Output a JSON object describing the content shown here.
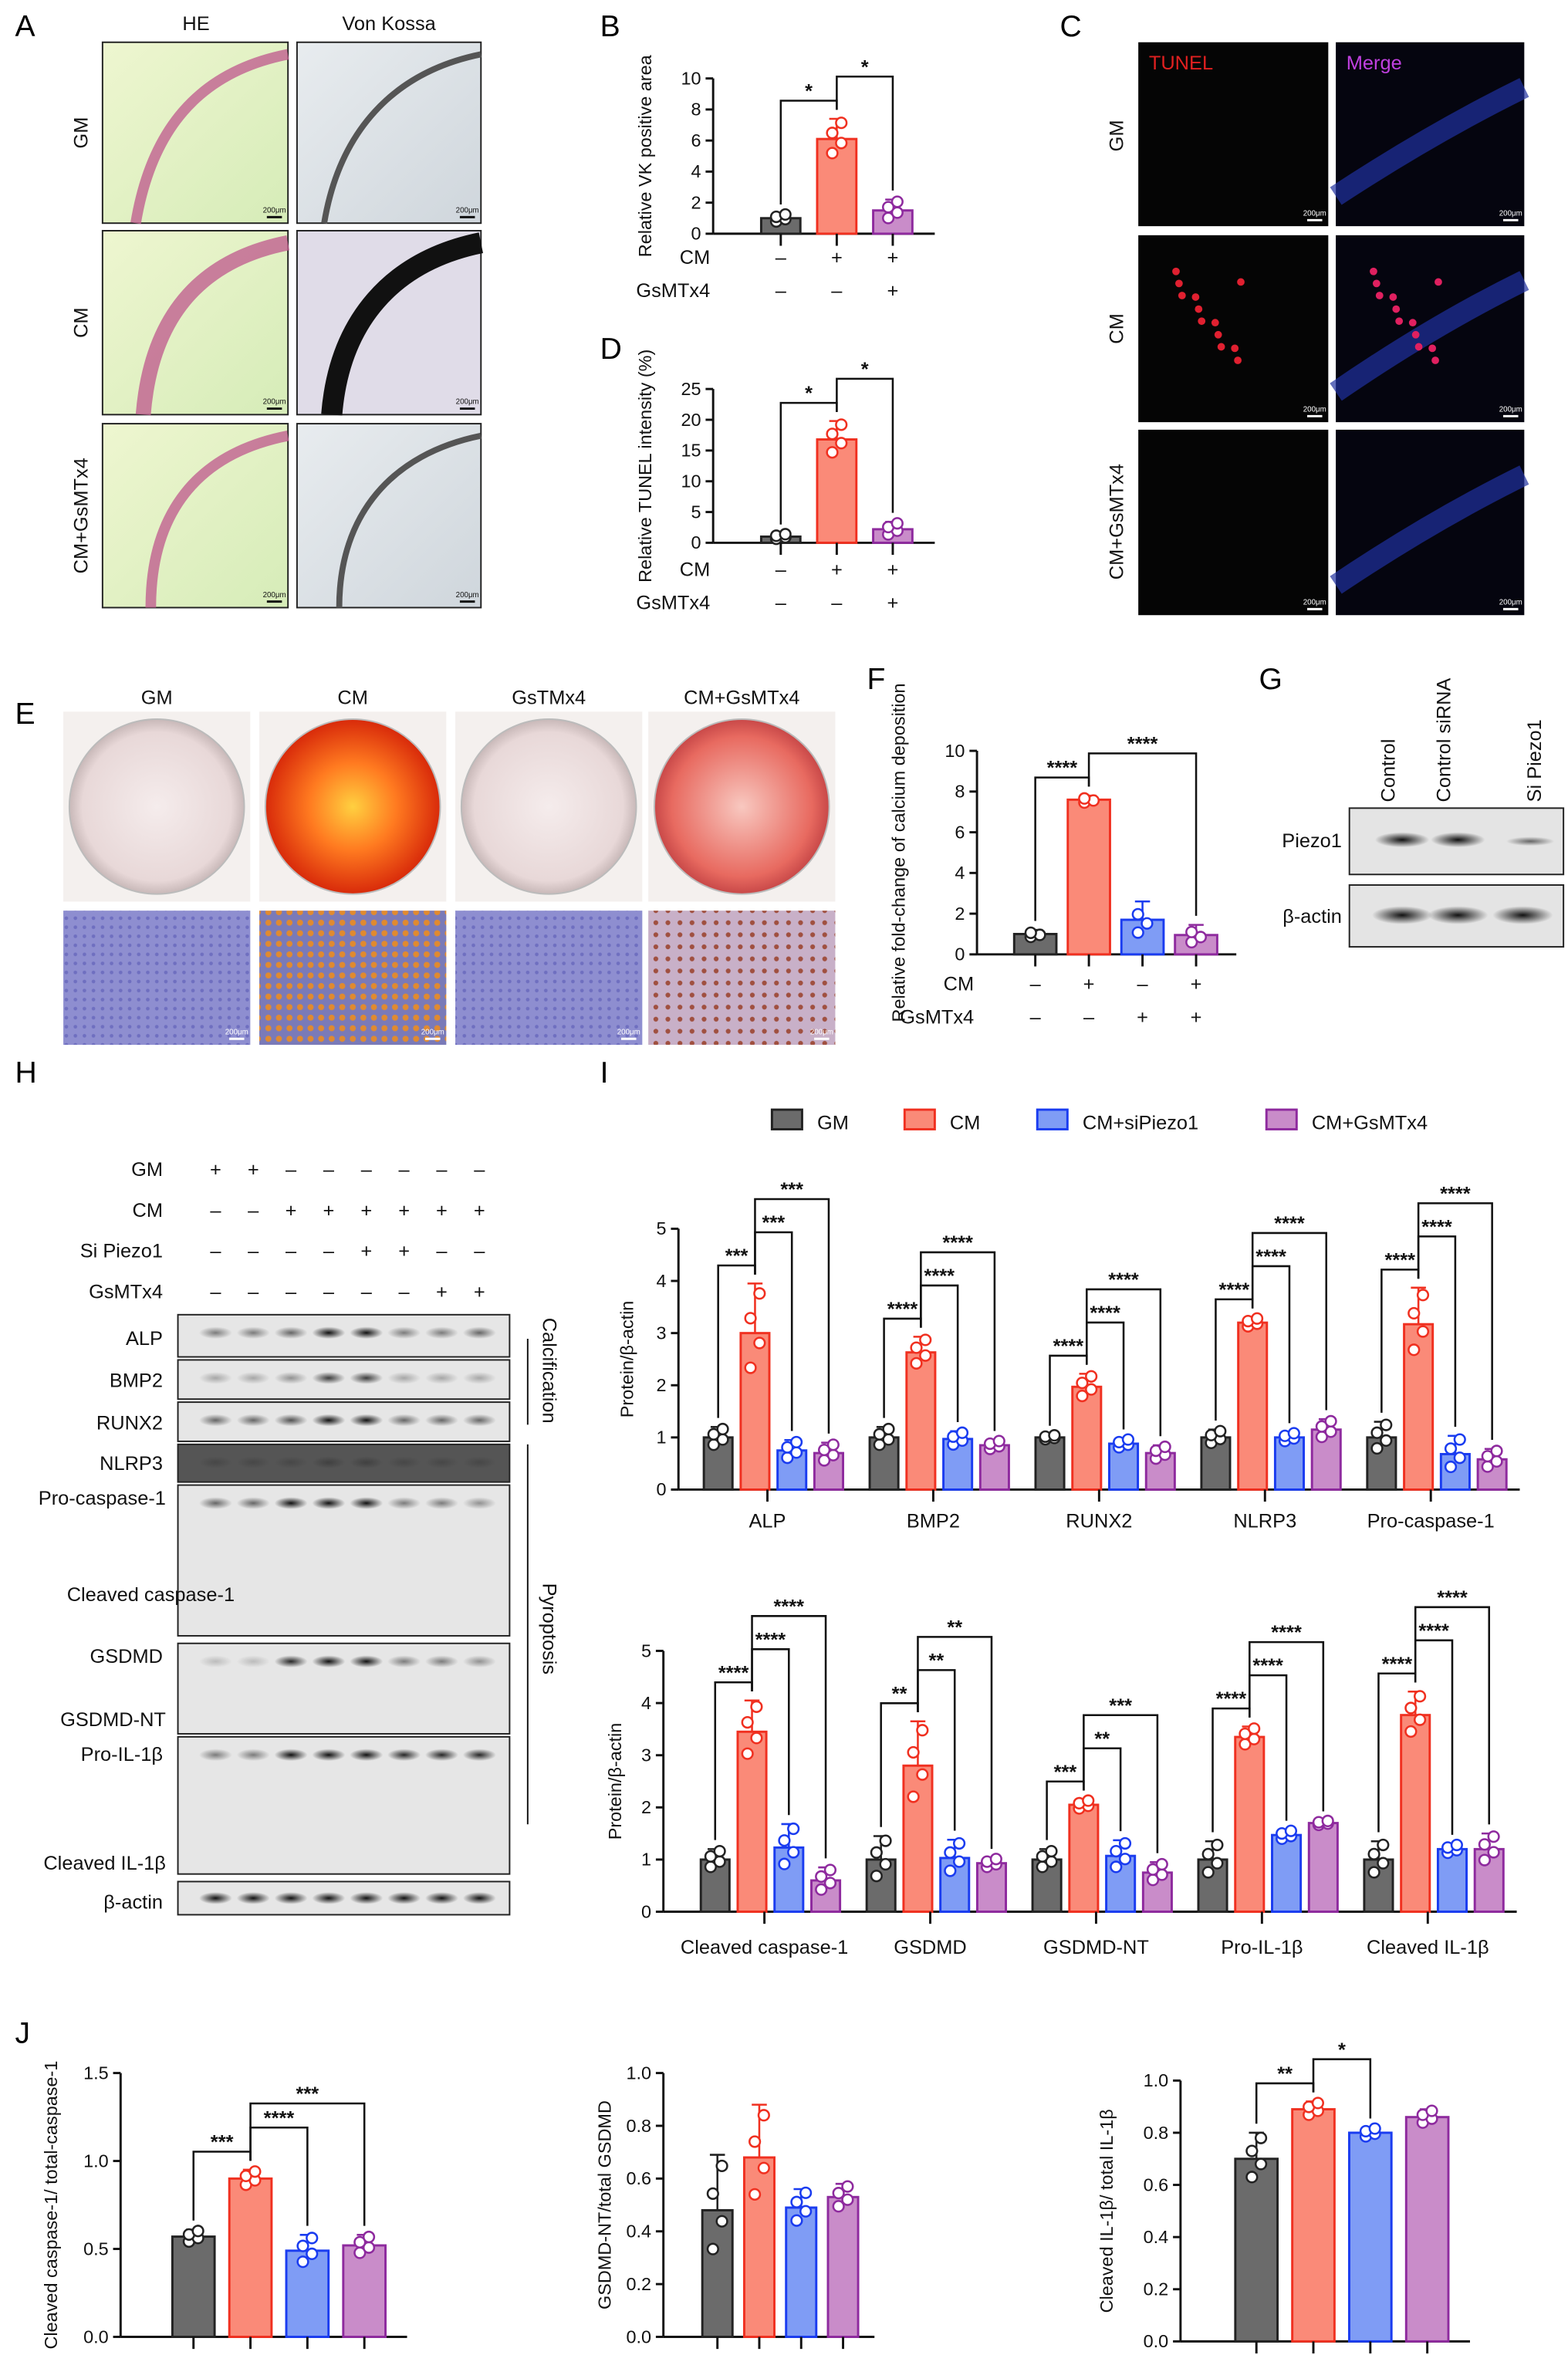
{
  "colors": {
    "GM": "#6b6b6b",
    "CM": "#fa8a78",
    "CM+siPiezo1": "#7f9cf5",
    "CM+GsMTx4": "#c98cc9",
    "GM_stroke": "#222222",
    "CM_stroke": "#f03020",
    "si_stroke": "#1a3cf0",
    "gs_stroke": "#8e2a9e"
  },
  "panels": {
    "A": {
      "label": "A",
      "cols": [
        "HE",
        "Von Kossa"
      ],
      "rows": [
        "GM",
        "CM",
        "CM+GsMTx4"
      ],
      "scale": "200μm"
    },
    "B": {
      "label": "B"
    },
    "C": {
      "label": "C",
      "cols": [
        "TUNEL",
        "Merge"
      ],
      "rows": [
        "GM",
        "CM",
        "CM+GsMTx4"
      ],
      "scale": "200μm"
    },
    "D": {
      "label": "D"
    },
    "E": {
      "label": "E",
      "cols": [
        "GM",
        "CM",
        "GsTMx4",
        "CM+GsMTx4"
      ],
      "scale": "200μm"
    },
    "F": {
      "label": "F"
    },
    "G": {
      "label": "G",
      "lanes": [
        "Control",
        "Control siRNA",
        "Si Piezo1"
      ],
      "rows": [
        "Piezo1",
        "β-actin"
      ]
    },
    "H": {
      "label": "H",
      "treatments": [
        {
          "name": "GM",
          "values": [
            "+",
            "+",
            "–",
            "–",
            "–",
            "–",
            "–",
            "–"
          ]
        },
        {
          "name": "CM",
          "values": [
            "–",
            "–",
            "+",
            "+",
            "+",
            "+",
            "+",
            "+"
          ]
        },
        {
          "name": "Si Piezo1",
          "values": [
            "–",
            "–",
            "–",
            "–",
            "+",
            "+",
            "–",
            "–"
          ]
        },
        {
          "name": "GsMTx4",
          "values": [
            "–",
            "–",
            "–",
            "–",
            "–",
            "–",
            "+",
            "+"
          ]
        }
      ],
      "blots": [
        "ALP",
        "BMP2",
        "RUNX2",
        "NLRP3",
        "Pro-caspase-1",
        "Cleaved caspase-1",
        "GSDMD",
        "GSDMD-NT",
        "Pro-IL-1β",
        "Cleaved IL-1β",
        "β-actin"
      ],
      "groups": [
        "Calcification",
        "Pyroptosis"
      ]
    },
    "I": {
      "label": "I",
      "legend": [
        "GM",
        "CM",
        "CM+siPiezo1",
        "CM+GsMTx4"
      ]
    },
    "J": {
      "label": "J"
    }
  },
  "chart_data": [
    {
      "id": "B",
      "type": "bar",
      "ylabel": "Relative VK positive area",
      "ylim": [
        0,
        10
      ],
      "ticks": [
        "0",
        "2",
        "4",
        "6",
        "8",
        "10"
      ],
      "series_names": [
        "GM",
        "CM",
        "CM+GsMTx4"
      ],
      "groups": [
        {
          "name": "",
          "values": [
            1.0,
            6.1,
            1.5
          ],
          "sd": [
            0.3,
            1.3,
            0.7
          ]
        }
      ],
      "sig": [
        {
          "g": 0,
          "a": 0,
          "b": 1,
          "label": "*"
        },
        {
          "g": 0,
          "a": 1,
          "b": 2,
          "label": "*"
        }
      ],
      "conditions": [
        {
          "name": "CM",
          "values": [
            "–",
            "+",
            "+"
          ]
        },
        {
          "name": "GsMTx4",
          "values": [
            "–",
            "–",
            "+"
          ]
        }
      ]
    },
    {
      "id": "D",
      "type": "bar",
      "ylabel": "Relative TUNEL intensity (%)",
      "ylim": [
        0,
        25
      ],
      "ticks": [
        "0",
        "5",
        "10",
        "15",
        "20",
        "25"
      ],
      "series_names": [
        "GM",
        "CM",
        "CM+GsMTx4"
      ],
      "groups": [
        {
          "name": "",
          "values": [
            1.0,
            16.8,
            2.2
          ],
          "sd": [
            0.5,
            3.0,
            1.2
          ]
        }
      ],
      "sig": [
        {
          "g": 0,
          "a": 0,
          "b": 1,
          "label": "*"
        },
        {
          "g": 0,
          "a": 1,
          "b": 2,
          "label": "*"
        }
      ],
      "conditions": [
        {
          "name": "CM",
          "values": [
            "–",
            "+",
            "+"
          ]
        },
        {
          "name": "GsMTx4",
          "values": [
            "–",
            "–",
            "+"
          ]
        }
      ]
    },
    {
      "id": "F",
      "type": "bar",
      "ylabel": "Relative fold-change of calcium deposition",
      "ylim": [
        0,
        10
      ],
      "ticks": [
        "0",
        "2",
        "4",
        "6",
        "8",
        "10"
      ],
      "series_names": [
        "GM",
        "CM",
        "GsMTx4",
        "CM+GsMTx4"
      ],
      "groups": [
        {
          "name": "",
          "values": [
            1.0,
            7.6,
            1.7,
            0.95
          ],
          "sd": [
            0.2,
            0.2,
            0.9,
            0.5
          ]
        }
      ],
      "sig": [
        {
          "g": 0,
          "a": 0,
          "b": 1,
          "label": "****"
        },
        {
          "g": 0,
          "a": 1,
          "b": 3,
          "label": "****"
        }
      ],
      "conditions": [
        {
          "name": "CM",
          "values": [
            "–",
            "+",
            "–",
            "+"
          ]
        },
        {
          "name": "GsMTx4",
          "values": [
            "–",
            "–",
            "+",
            "+"
          ]
        }
      ]
    },
    {
      "id": "I-top",
      "type": "bar",
      "ylabel": "Protein/β-actin",
      "ylim": [
        0,
        5
      ],
      "ticks": [
        "0",
        "1",
        "2",
        "3",
        "4",
        "5"
      ],
      "series_names": [
        "GM",
        "CM",
        "CM+siPiezo1",
        "CM+GsMTx4"
      ],
      "groups": [
        {
          "name": "ALP",
          "values": [
            1.0,
            3.0,
            0.75,
            0.7
          ],
          "sd": [
            0.2,
            0.95,
            0.2,
            0.2
          ],
          "sig": [
            "***",
            "***",
            "***"
          ]
        },
        {
          "name": "BMP2",
          "values": [
            1.0,
            2.63,
            0.97,
            0.85
          ],
          "sd": [
            0.2,
            0.3,
            0.15,
            0.1
          ],
          "sig": [
            "****",
            "****",
            "****"
          ]
        },
        {
          "name": "RUNX2",
          "values": [
            1.0,
            1.97,
            0.88,
            0.7
          ],
          "sd": [
            0.05,
            0.25,
            0.1,
            0.15
          ],
          "sig": [
            "****",
            "****",
            "****"
          ]
        },
        {
          "name": "NLRP3",
          "values": [
            1.0,
            3.2,
            1.0,
            1.15
          ],
          "sd": [
            0.15,
            0.1,
            0.1,
            0.2
          ],
          "sig": [
            "****",
            "****",
            "****"
          ]
        },
        {
          "name": "Pro-caspase-1",
          "values": [
            1.0,
            3.17,
            0.68,
            0.58
          ],
          "sd": [
            0.3,
            0.7,
            0.35,
            0.2
          ],
          "sig": [
            "****",
            "****",
            "****"
          ]
        }
      ]
    },
    {
      "id": "I-bottom",
      "type": "bar",
      "ylabel": "Protein/β-actin",
      "ylim": [
        0,
        5
      ],
      "ticks": [
        "0",
        "1",
        "2",
        "3",
        "4",
        "5"
      ],
      "series_names": [
        "GM",
        "CM",
        "CM+siPiezo1",
        "CM+GsMTx4"
      ],
      "groups": [
        {
          "name": "Cleaved caspase-1",
          "values": [
            1.0,
            3.45,
            1.23,
            0.6
          ],
          "sd": [
            0.2,
            0.6,
            0.45,
            0.25
          ],
          "sig": [
            "****",
            "****",
            "****"
          ]
        },
        {
          "name": "GSDMD",
          "values": [
            1.0,
            2.8,
            1.03,
            0.93
          ],
          "sd": [
            0.45,
            0.85,
            0.35,
            0.1
          ],
          "sig": [
            "**",
            "**",
            "**"
          ]
        },
        {
          "name": "GSDMD-NT",
          "values": [
            1.0,
            2.05,
            1.07,
            0.75
          ],
          "sd": [
            0.2,
            0.1,
            0.3,
            0.2
          ],
          "sig": [
            "***",
            "**",
            "***"
          ]
        },
        {
          "name": "Pro-IL-1β",
          "values": [
            1.0,
            3.35,
            1.47,
            1.7
          ],
          "sd": [
            0.35,
            0.2,
            0.1,
            0.05
          ],
          "sig": [
            "****",
            "****",
            "****"
          ]
        },
        {
          "name": "Cleaved IL-1β",
          "values": [
            1.0,
            3.77,
            1.2,
            1.2
          ],
          "sd": [
            0.35,
            0.45,
            0.1,
            0.3
          ],
          "sig": [
            "****",
            "****",
            "****"
          ]
        }
      ]
    },
    {
      "id": "J1",
      "type": "bar",
      "ylabel": "Cleaved caspase-1/ total-caspase-1",
      "ylim": [
        0,
        1.5
      ],
      "ticks": [
        "0.0",
        "0.5",
        "1.0",
        "1.5"
      ],
      "series_names": [
        "GM",
        "CM",
        "CM+siPiezo1",
        "CM+GsMTx4"
      ],
      "groups": [
        {
          "name": "",
          "values": [
            0.57,
            0.9,
            0.49,
            0.52
          ],
          "sd": [
            0.04,
            0.05,
            0.09,
            0.06
          ]
        }
      ],
      "sig": [
        {
          "g": 0,
          "a": 0,
          "b": 1,
          "label": "***"
        },
        {
          "g": 0,
          "a": 1,
          "b": 2,
          "label": "****"
        },
        {
          "g": 0,
          "a": 1,
          "b": 3,
          "label": "***"
        }
      ]
    },
    {
      "id": "J2",
      "type": "bar",
      "ylabel": "GSDMD-NT/total GSDMD",
      "ylim": [
        0,
        1.0
      ],
      "ticks": [
        "0.0",
        "0.2",
        "0.4",
        "0.6",
        "0.8",
        "1.0"
      ],
      "series_names": [
        "GM",
        "CM",
        "CM+siPiezo1",
        "CM+GsMTx4"
      ],
      "groups": [
        {
          "name": "",
          "values": [
            0.48,
            0.68,
            0.49,
            0.53
          ],
          "sd": [
            0.21,
            0.2,
            0.07,
            0.05
          ]
        }
      ],
      "sig": []
    },
    {
      "id": "J3",
      "type": "bar",
      "ylabel": "Cleaved IL-1β/ total IL-1β",
      "ylim": [
        0,
        1.0
      ],
      "ticks": [
        "0.0",
        "0.2",
        "0.4",
        "0.6",
        "0.8",
        "1.0"
      ],
      "series_names": [
        "GM",
        "CM",
        "CM+siPiezo1",
        "CM+GsMTx4"
      ],
      "groups": [
        {
          "name": "",
          "values": [
            0.7,
            0.89,
            0.8,
            0.86
          ],
          "sd": [
            0.1,
            0.03,
            0.02,
            0.03
          ]
        }
      ],
      "sig": [
        {
          "g": 0,
          "a": 0,
          "b": 1,
          "label": "**"
        },
        {
          "g": 0,
          "a": 1,
          "b": 2,
          "label": "*"
        }
      ]
    }
  ]
}
